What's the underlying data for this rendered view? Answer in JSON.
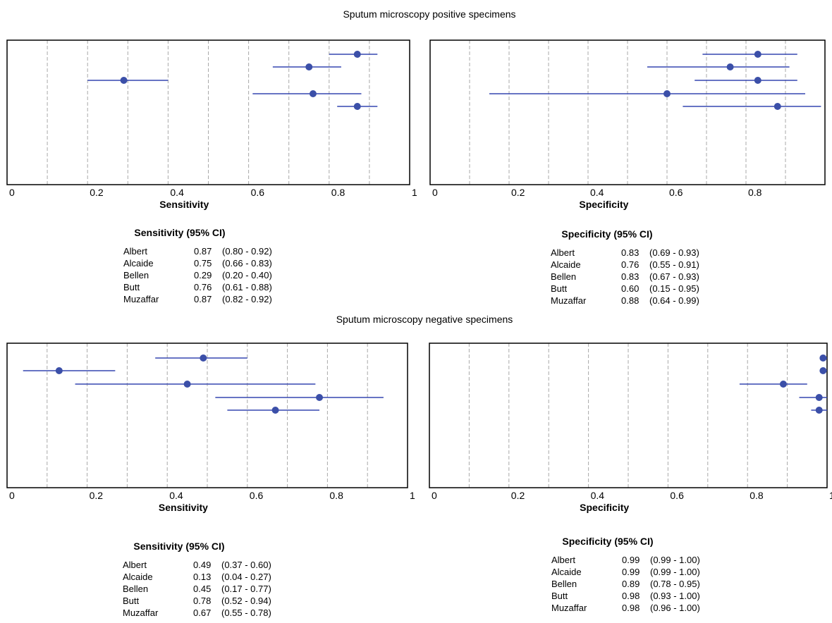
{
  "sections": [
    {
      "title": "Sputum microscopy positive specimens"
    },
    {
      "title": "Sputum microscopy negative specimens"
    }
  ],
  "chart_data": [
    {
      "type": "forest",
      "section": "Sputum microscopy positive specimens",
      "xlabel": "Sensitivity",
      "table_title": "Sensitivity (95% CI)",
      "xlim": [
        0,
        1
      ],
      "tick_labels": [
        "0",
        "0.2",
        "0.4",
        "0.6",
        "0.8",
        "1"
      ],
      "grid": "vertical dashed",
      "rows": [
        {
          "study": "Albert",
          "est_label": "0.87",
          "ci_label": "(0.80 - 0.92)",
          "est": 0.87,
          "lo": 0.8,
          "hi": 0.92
        },
        {
          "study": "Alcaide",
          "est_label": "0.75",
          "ci_label": "(0.66 - 0.83)",
          "est": 0.75,
          "lo": 0.66,
          "hi": 0.83
        },
        {
          "study": "Bellen",
          "est_label": "0.29",
          "ci_label": "(0.20 - 0.40)",
          "est": 0.29,
          "lo": 0.2,
          "hi": 0.4
        },
        {
          "study": "Butt",
          "est_label": "0.76",
          "ci_label": "(0.61 - 0.88)",
          "est": 0.76,
          "lo": 0.61,
          "hi": 0.88
        },
        {
          "study": "Muzaffar",
          "est_label": "0.87",
          "ci_label": "(0.82 - 0.92)",
          "est": 0.87,
          "lo": 0.82,
          "hi": 0.92
        }
      ]
    },
    {
      "type": "forest",
      "section": "Sputum microscopy positive specimens",
      "xlabel": "Specificity",
      "table_title": "Specificity (95% CI)",
      "xlim": [
        0,
        1
      ],
      "tick_labels": [
        "0",
        "0.2",
        "0.4",
        "0.6",
        "0.8"
      ],
      "grid": "vertical dashed",
      "rows": [
        {
          "study": "Albert",
          "est_label": "0.83",
          "ci_label": "(0.69 - 0.93)",
          "est": 0.83,
          "lo": 0.69,
          "hi": 0.93
        },
        {
          "study": "Alcaide",
          "est_label": "0.76",
          "ci_label": "(0.55 - 0.91)",
          "est": 0.76,
          "lo": 0.55,
          "hi": 0.91
        },
        {
          "study": "Bellen",
          "est_label": "0.83",
          "ci_label": "(0.67 - 0.93)",
          "est": 0.83,
          "lo": 0.67,
          "hi": 0.93
        },
        {
          "study": "Butt",
          "est_label": "0.60",
          "ci_label": "(0.15 - 0.95)",
          "est": 0.6,
          "lo": 0.15,
          "hi": 0.95
        },
        {
          "study": "Muzaffar",
          "est_label": "0.88",
          "ci_label": "(0.64 - 0.99)",
          "est": 0.88,
          "lo": 0.64,
          "hi": 0.99
        }
      ]
    },
    {
      "type": "forest",
      "section": "Sputum microscopy negative specimens",
      "xlabel": "Sensitivity",
      "table_title": "Sensitivity (95% CI)",
      "xlim": [
        0,
        1
      ],
      "tick_labels": [
        "0",
        "0.2",
        "0.4",
        "0.6",
        "0.8",
        "1"
      ],
      "grid": "vertical dashed",
      "rows": [
        {
          "study": "Albert",
          "est_label": "0.49",
          "ci_label": "(0.37 - 0.60)",
          "est": 0.49,
          "lo": 0.37,
          "hi": 0.6
        },
        {
          "study": "Alcaide",
          "est_label": "0.13",
          "ci_label": "(0.04 - 0.27)",
          "est": 0.13,
          "lo": 0.04,
          "hi": 0.27
        },
        {
          "study": "Bellen",
          "est_label": "0.45",
          "ci_label": "(0.17 - 0.77)",
          "est": 0.45,
          "lo": 0.17,
          "hi": 0.77
        },
        {
          "study": "Butt",
          "est_label": "0.78",
          "ci_label": "(0.52 - 0.94)",
          "est": 0.78,
          "lo": 0.52,
          "hi": 0.94
        },
        {
          "study": "Muzaffar",
          "est_label": "0.67",
          "ci_label": "(0.55 - 0.78)",
          "est": 0.67,
          "lo": 0.55,
          "hi": 0.78
        }
      ]
    },
    {
      "type": "forest",
      "section": "Sputum microscopy negative specimens",
      "xlabel": "Specificity",
      "table_title": "Specificity (95% CI)",
      "xlim": [
        0,
        1
      ],
      "tick_labels": [
        "0",
        "0.2",
        "0.4",
        "0.6",
        "0.8",
        "1"
      ],
      "grid": "vertical dashed",
      "rows": [
        {
          "study": "Albert",
          "est_label": "0.99",
          "ci_label": "(0.99 - 1.00)",
          "est": 0.99,
          "lo": 0.99,
          "hi": 1.0
        },
        {
          "study": "Alcaide",
          "est_label": "0.99",
          "ci_label": "(0.99 - 1.00)",
          "est": 0.99,
          "lo": 0.99,
          "hi": 1.0
        },
        {
          "study": "Bellen",
          "est_label": "0.89",
          "ci_label": "(0.78 - 0.95)",
          "est": 0.89,
          "lo": 0.78,
          "hi": 0.95
        },
        {
          "study": "Butt",
          "est_label": "0.98",
          "ci_label": "(0.93 - 1.00)",
          "est": 0.98,
          "lo": 0.93,
          "hi": 1.0
        },
        {
          "study": "Muzaffar",
          "est_label": "0.98",
          "ci_label": "(0.96 - 1.00)",
          "est": 0.98,
          "lo": 0.96,
          "hi": 1.0
        }
      ]
    }
  ],
  "colors": {
    "marker": "#3b4fa8",
    "ci_line": "#3546b0",
    "frame": "#000000",
    "grid": "#a9a9a9"
  }
}
